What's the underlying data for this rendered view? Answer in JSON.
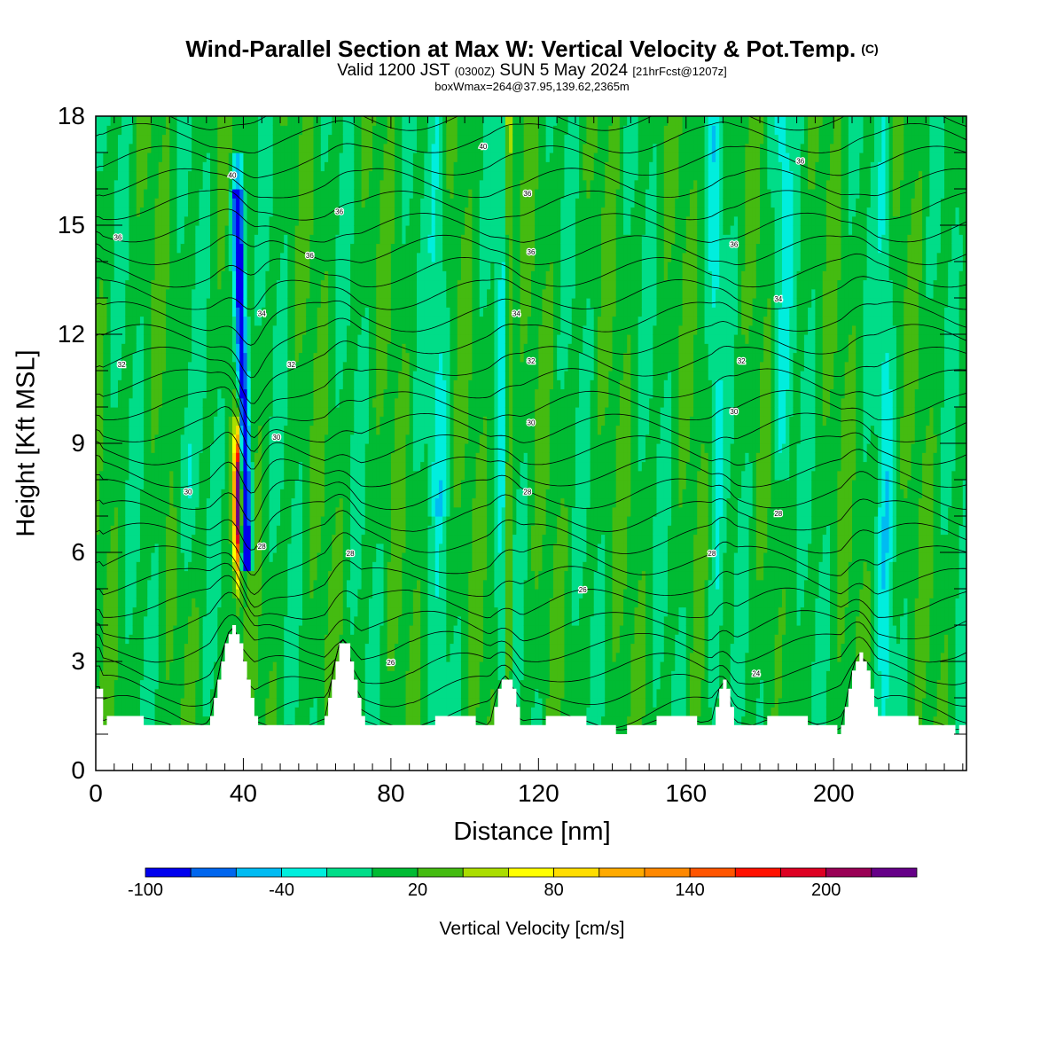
{
  "header": {
    "title": "Wind-Parallel Section at Max W: Vertical Velocity & Pot.Temp.",
    "title_mark": "(C)",
    "valid_prefix": "Valid 1200 JST",
    "valid_utc": "(0300Z)",
    "valid_date": "SUN 5 May 2024",
    "forecast_tag": "[21hrFcst@1207z]",
    "box_info": "boxWmax=264@37.95,139.62,2365m"
  },
  "chart_data": {
    "type": "heatmap",
    "xlabel": "Distance [nm]",
    "ylabel": "Height [Kft MSL]",
    "xlim": [
      0,
      236
    ],
    "ylim": [
      0,
      18
    ],
    "x_ticks": [
      "0",
      "40",
      "80",
      "120",
      "160",
      "200"
    ],
    "x_tick_values": [
      0,
      40,
      80,
      120,
      160,
      200
    ],
    "y_ticks": [
      "0",
      "3",
      "6",
      "9",
      "12",
      "15",
      "18"
    ],
    "y_tick_values": [
      0,
      3,
      6,
      9,
      12,
      15,
      18
    ],
    "colorbar": {
      "label": "Vertical Velocity [cm/s]",
      "tick_labels": [
        "-100",
        "-40",
        "20",
        "80",
        "140",
        "200"
      ],
      "tick_values": [
        -100,
        -40,
        20,
        80,
        140,
        200
      ],
      "levels": [
        -100,
        -80,
        -60,
        -40,
        -20,
        0,
        20,
        40,
        60,
        80,
        100,
        120,
        140,
        160,
        180,
        200,
        220,
        240
      ],
      "colors": [
        "#0000ee",
        "#0066ee",
        "#00bbf2",
        "#00eedd",
        "#00dd88",
        "#00bb33",
        "#44bb11",
        "#aadd00",
        "#ffff00",
        "#ffdd00",
        "#ffaa00",
        "#ff8800",
        "#ff5500",
        "#ff1100",
        "#dd0022",
        "#990055",
        "#660088"
      ]
    },
    "theta_contour_labels": [
      {
        "text": "36",
        "x": 6,
        "y": 14.6
      },
      {
        "text": "40",
        "x": 37,
        "y": 16.3
      },
      {
        "text": "36",
        "x": 66,
        "y": 15.3
      },
      {
        "text": "40",
        "x": 105,
        "y": 17.1
      },
      {
        "text": "36",
        "x": 117,
        "y": 15.8
      },
      {
        "text": "36",
        "x": 58,
        "y": 14.1
      },
      {
        "text": "36",
        "x": 118,
        "y": 14.2
      },
      {
        "text": "36",
        "x": 173,
        "y": 14.4
      },
      {
        "text": "36",
        "x": 191,
        "y": 16.7
      },
      {
        "text": "34",
        "x": 45,
        "y": 12.5
      },
      {
        "text": "34",
        "x": 114,
        "y": 12.5
      },
      {
        "text": "34",
        "x": 185,
        "y": 12.9
      },
      {
        "text": "32",
        "x": 7,
        "y": 11.1
      },
      {
        "text": "32",
        "x": 53,
        "y": 11.1
      },
      {
        "text": "32",
        "x": 118,
        "y": 11.2
      },
      {
        "text": "32",
        "x": 175,
        "y": 11.2
      },
      {
        "text": "30",
        "x": 49,
        "y": 9.1
      },
      {
        "text": "30",
        "x": 118,
        "y": 9.5
      },
      {
        "text": "30",
        "x": 173,
        "y": 9.8
      },
      {
        "text": "30",
        "x": 25,
        "y": 7.6
      },
      {
        "text": "28",
        "x": 117,
        "y": 7.6
      },
      {
        "text": "28",
        "x": 185,
        "y": 7.0
      },
      {
        "text": "28",
        "x": 45,
        "y": 6.1
      },
      {
        "text": "28",
        "x": 69,
        "y": 5.9
      },
      {
        "text": "28",
        "x": 167,
        "y": 5.9
      },
      {
        "text": "26",
        "x": 132,
        "y": 4.9
      },
      {
        "text": "26",
        "x": 80,
        "y": 2.9
      },
      {
        "text": "24",
        "x": 179,
        "y": 2.6
      }
    ]
  }
}
